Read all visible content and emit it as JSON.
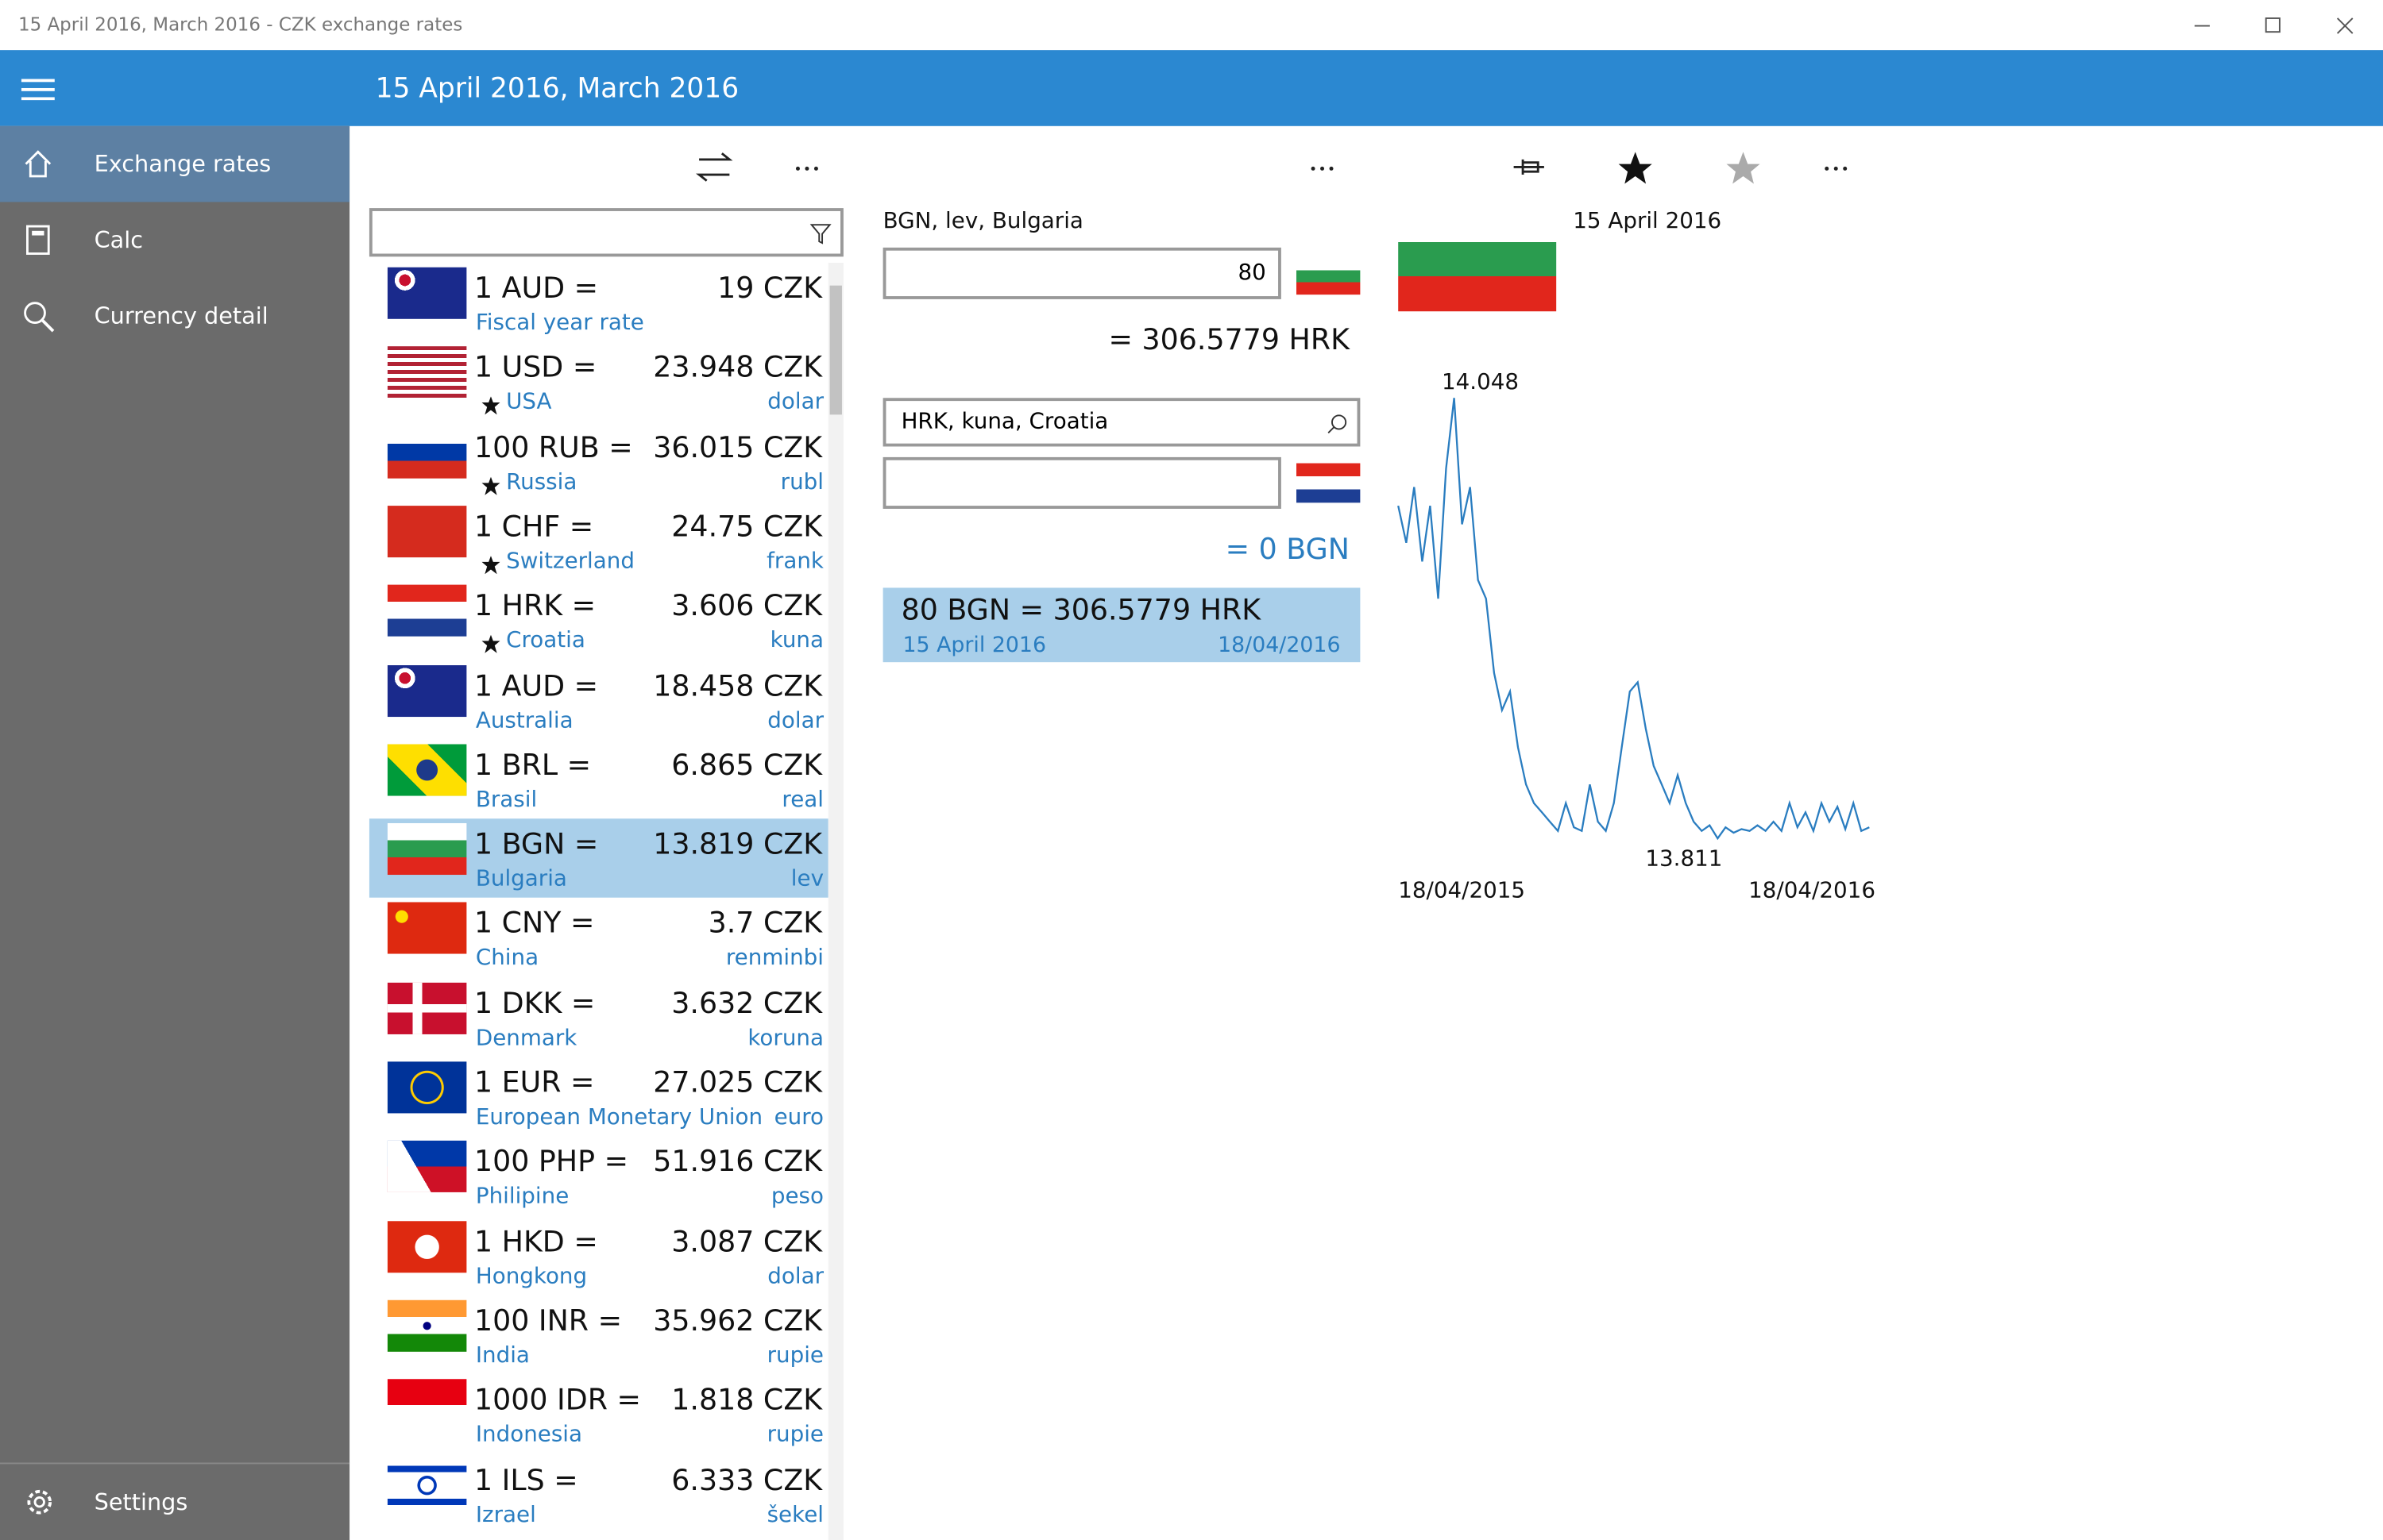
{
  "window_title": "15 April 2016, March 2016 - CZK exchange rates",
  "header": {
    "title": "15 April 2016, March 2016"
  },
  "nav": {
    "items": [
      "Exchange rates",
      "Calc",
      "Currency detail"
    ],
    "settings": "Settings"
  },
  "rates": [
    {
      "unit": "1 AUD =",
      "rate": "19 CZK",
      "country": "Fiscal year rate",
      "name": "",
      "starred": false
    },
    {
      "unit": "1 USD =",
      "rate": "23.948 CZK",
      "country": "USA",
      "name": "dolar",
      "starred": true
    },
    {
      "unit": "100 RUB =",
      "rate": "36.015 CZK",
      "country": "Russia",
      "name": "rubl",
      "starred": true
    },
    {
      "unit": "1 CHF =",
      "rate": "24.75 CZK",
      "country": "Switzerland",
      "name": "frank",
      "starred": true
    },
    {
      "unit": "1 HRK =",
      "rate": "3.606 CZK",
      "country": "Croatia",
      "name": "kuna",
      "starred": true
    },
    {
      "unit": "1 AUD =",
      "rate": "18.458 CZK",
      "country": "Australia",
      "name": "dolar",
      "starred": false
    },
    {
      "unit": "1 BRL =",
      "rate": "6.865 CZK",
      "country": "Brasil",
      "name": "real",
      "starred": false
    },
    {
      "unit": "1 BGN =",
      "rate": "13.819 CZK",
      "country": "Bulgaria",
      "name": "lev",
      "starred": false,
      "selected": true
    },
    {
      "unit": "1 CNY =",
      "rate": "3.7 CZK",
      "country": "China",
      "name": "renminbi",
      "starred": false
    },
    {
      "unit": "1 DKK =",
      "rate": "3.632 CZK",
      "country": "Denmark",
      "name": "koruna",
      "starred": false
    },
    {
      "unit": "1 EUR =",
      "rate": "27.025 CZK",
      "country": "European Monetary Union",
      "name": "euro",
      "starred": false
    },
    {
      "unit": "100 PHP =",
      "rate": "51.916 CZK",
      "country": "Philipine",
      "name": "peso",
      "starred": false
    },
    {
      "unit": "1 HKD =",
      "rate": "3.087 CZK",
      "country": "Hongkong",
      "name": "dolar",
      "starred": false
    },
    {
      "unit": "100 INR =",
      "rate": "35.962 CZK",
      "country": "India",
      "name": "rupie",
      "starred": false
    },
    {
      "unit": "1000 IDR =",
      "rate": "1.818 CZK",
      "country": "Indonesia",
      "name": "rupie",
      "starred": false
    },
    {
      "unit": "1 ILS =",
      "rate": "6.333 CZK",
      "country": "Izrael",
      "name": "šekel",
      "starred": false
    }
  ],
  "converter": {
    "from_label": "BGN, lev, Bulgaria",
    "from_value": "80",
    "from_result": "= 306.5779 HRK",
    "to_label": "HRK, kuna, Croatia",
    "to_value": "",
    "to_result": "= 0 BGN",
    "summary": "80 BGN = 306.5779 HRK",
    "summary_date": "15 April 2016",
    "summary_date2": "18/04/2016"
  },
  "detail": {
    "date": "15 April 2016"
  },
  "chart": {
    "type": "line",
    "color": "#2a7dc0",
    "max_label": "14.048",
    "min_label": "13.811",
    "x_start": "18/04/2015",
    "x_end": "18/04/2016",
    "ylim": [
      13.811,
      14.048
    ],
    "values": [
      13.99,
      13.97,
      14.0,
      13.96,
      13.99,
      13.94,
      14.01,
      14.048,
      13.98,
      14.0,
      13.95,
      13.94,
      13.9,
      13.88,
      13.89,
      13.86,
      13.84,
      13.83,
      13.825,
      13.82,
      13.815,
      13.83,
      13.817,
      13.815,
      13.84,
      13.82,
      13.815,
      13.83,
      13.86,
      13.89,
      13.895,
      13.87,
      13.85,
      13.84,
      13.83,
      13.845,
      13.83,
      13.82,
      13.815,
      13.818,
      13.811,
      13.817,
      13.814,
      13.816,
      13.815,
      13.818,
      13.815,
      13.82,
      13.815,
      13.83,
      13.817,
      13.825,
      13.815,
      13.83,
      13.82,
      13.828,
      13.816,
      13.83,
      13.815,
      13.817
    ]
  }
}
